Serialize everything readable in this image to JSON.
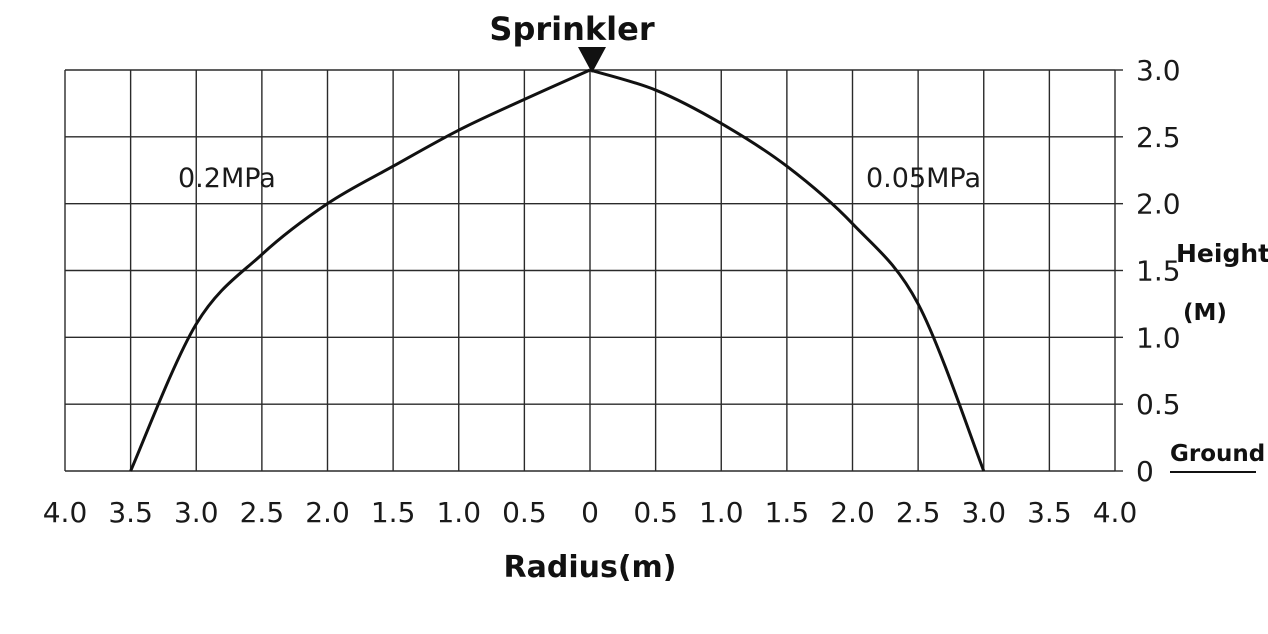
{
  "chart_data": {
    "type": "line",
    "title": "Sprinkler",
    "xlabel": "Radius(m)",
    "ylabel_line1": "Height",
    "ylabel_line2": "(M)",
    "ground_label": "Ground",
    "xlim": [
      -4.0,
      4.0
    ],
    "ylim": [
      0,
      3.0
    ],
    "x_ticks": [
      "4.0",
      "3.5",
      "3.0",
      "2.5",
      "2.0",
      "1.5",
      "1.0",
      "0.5",
      "0",
      "0.5",
      "1.0",
      "1.5",
      "2.0",
      "2.5",
      "3.0",
      "3.5",
      "4.0"
    ],
    "y_ticks": [
      "0",
      "0.5",
      "1.0",
      "1.5",
      "2.0",
      "2.5",
      "3.0"
    ],
    "grid": true,
    "series": [
      {
        "name": "0.2MPa",
        "side": "left",
        "x": [
          0,
          -0.5,
          -1.0,
          -1.5,
          -2.0,
          -2.5,
          -3.0,
          -3.5
        ],
        "y": [
          3.0,
          2.78,
          2.55,
          2.28,
          2.0,
          1.62,
          1.1,
          0
        ]
      },
      {
        "name": "0.05MPa",
        "side": "right",
        "x": [
          0,
          0.5,
          1.0,
          1.5,
          2.0,
          2.5,
          3.0
        ],
        "y": [
          3.0,
          2.85,
          2.6,
          2.28,
          1.85,
          1.25,
          0
        ]
      }
    ],
    "colors": {
      "line": "#111111",
      "grid": "#2a2a2a"
    }
  }
}
